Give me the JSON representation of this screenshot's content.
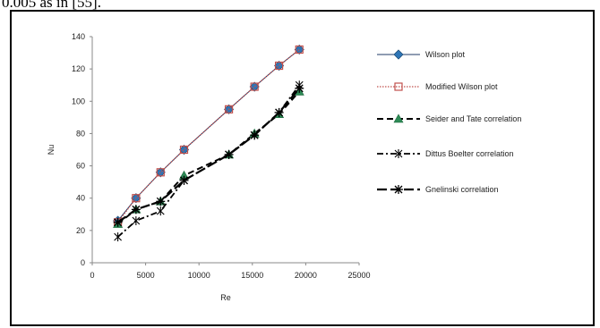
{
  "caption_fragment": "0.005 as in [55].",
  "chart_data": {
    "type": "line",
    "xlabel": "Re",
    "ylabel": "Nu",
    "xlim": [
      0,
      25000
    ],
    "ylim": [
      0,
      140
    ],
    "xticks": [
      0,
      5000,
      10000,
      15000,
      20000,
      25000
    ],
    "yticks": [
      0,
      20,
      40,
      60,
      80,
      100,
      120,
      140
    ],
    "xtick_labels": [
      "0",
      "5000",
      "10000",
      "15000",
      "20000",
      "25000"
    ],
    "ytick_labels": [
      "0",
      "20",
      "40",
      "60",
      "80",
      "100",
      "120",
      "140"
    ],
    "grid": false,
    "legend_position": "right",
    "series": [
      {
        "name": "Wilson plot",
        "color": "#2e75b6",
        "line": "solid",
        "marker": "diamond",
        "x": [
          2400,
          4100,
          6400,
          8600,
          12800,
          15200,
          17500,
          19400
        ],
        "y": [
          26,
          40,
          56,
          70,
          95,
          109,
          122,
          132
        ]
      },
      {
        "name": "Modified Wilson plot",
        "color": "#c0504d",
        "line": "dotted",
        "marker": "open-square",
        "x": [
          2400,
          4100,
          6400,
          8600,
          12800,
          15200,
          17500,
          19400
        ],
        "y": [
          25,
          40,
          56,
          70,
          95,
          109,
          122,
          132
        ]
      },
      {
        "name": "Seider and Tate correlation",
        "color": "#000000",
        "line": "dashed",
        "marker": "triangle",
        "x": [
          2400,
          4100,
          6400,
          8600,
          12800,
          15200,
          17500,
          19400
        ],
        "y": [
          24,
          33,
          38,
          54,
          67,
          80,
          92,
          106
        ]
      },
      {
        "name": "Dittus Boelter correlation",
        "color": "#000000",
        "line": "dash-dot",
        "marker": "asterisk",
        "x": [
          2400,
          4100,
          6400,
          8600,
          12800,
          15200,
          17500,
          19400
        ],
        "y": [
          16,
          26,
          32,
          51,
          67,
          79,
          93,
          110
        ]
      },
      {
        "name": "Gnelinski correlation",
        "color": "#000000",
        "line": "long-dash",
        "marker": "star",
        "x": [
          2400,
          4100,
          6400,
          8600,
          12800,
          15200,
          17500,
          19400
        ],
        "y": [
          25,
          33,
          38,
          51,
          67,
          79,
          93,
          108
        ]
      }
    ]
  }
}
